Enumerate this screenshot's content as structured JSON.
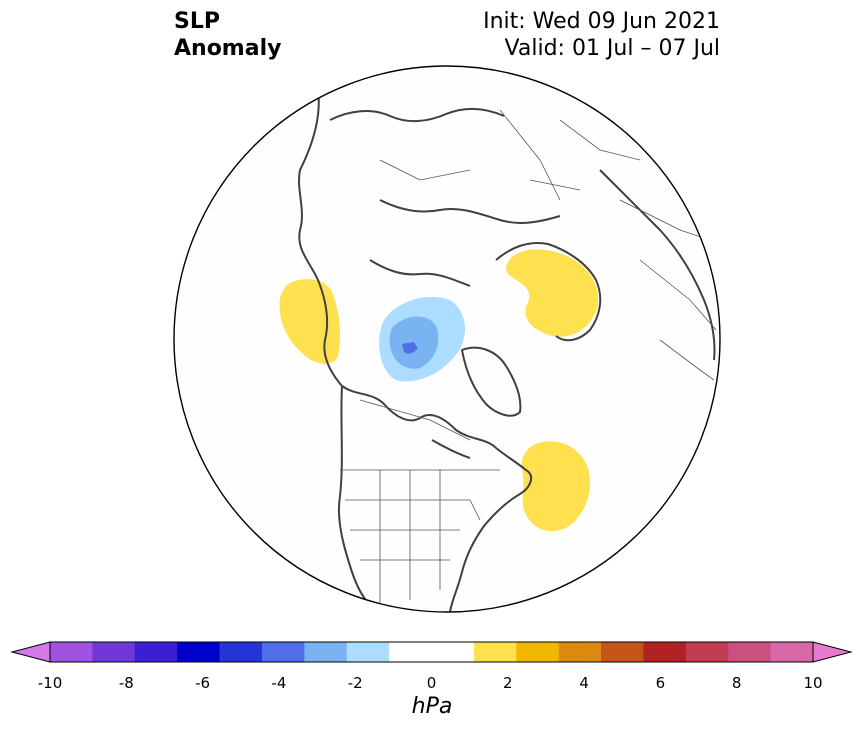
{
  "header": {
    "variable": "SLP",
    "field": "Anomaly",
    "init": "Init: Wed 09 Jun 2021",
    "valid": "Valid: 01 Jul – 07 Jul"
  },
  "map": {
    "projection": "north-polar-stereographic",
    "anomalies": [
      {
        "sign": "positive",
        "level": "1 to 2",
        "region": "Alaska / Bering Sea",
        "color": "#ffe14f"
      },
      {
        "sign": "negative",
        "level": "-1 to -3",
        "region": "Canadian Arctic Archipelago",
        "color": "#acdcff"
      },
      {
        "sign": "positive",
        "level": "1 to 2",
        "region": "Scandinavia / Barents Sea",
        "color": "#ffe14f"
      },
      {
        "sign": "positive",
        "level": "1 to 2",
        "region": "Western North Atlantic",
        "color": "#ffe14f"
      }
    ]
  },
  "colorbar": {
    "units": "hPa",
    "ticks": [
      "-10",
      "-8",
      "-6",
      "-4",
      "-2",
      "0",
      "2",
      "4",
      "6",
      "8",
      "10"
    ],
    "colors": [
      "#d479e8",
      "#a052e0",
      "#7038d8",
      "#3d1fd2",
      "#0000cc",
      "#2535d8",
      "#4f6ee8",
      "#79b3f2",
      "#acdcff",
      "#ffffff",
      "#ffffff",
      "#ffe14f",
      "#f2b800",
      "#dd8a10",
      "#c45518",
      "#b22222",
      "#c03a52",
      "#cc5080",
      "#d868a8",
      "#e67ad0"
    ],
    "extend": "both"
  }
}
